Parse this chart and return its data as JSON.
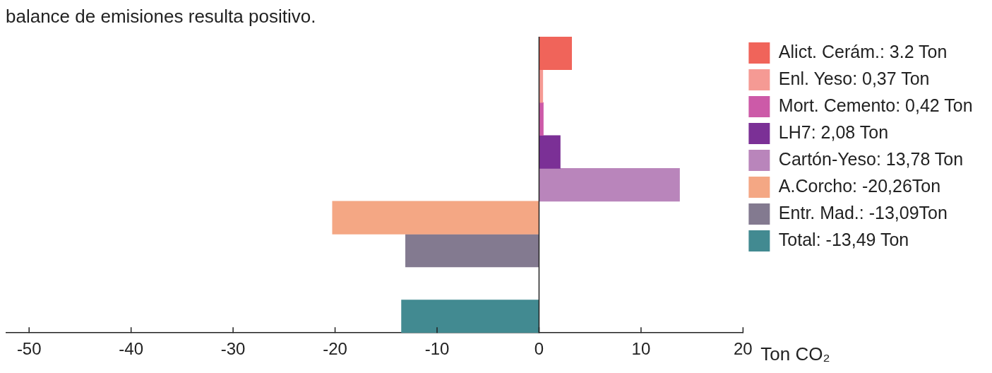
{
  "chart_data": {
    "type": "bar",
    "orientation": "horizontal",
    "annotations": [
      "balance de emisiones resulta positivo."
    ],
    "xlabel": "Ton CO₂",
    "categories": [
      null,
      null,
      null,
      null,
      null,
      null,
      null,
      null,
      null
    ],
    "series": [
      {
        "name": "Alict. Cerám.: 3.2 Ton",
        "color": "#f0645a",
        "values": [
          3.2,
          null,
          null,
          null,
          null,
          null,
          null,
          null,
          null
        ]
      },
      {
        "name": "Enl. Yeso: 0,37 Ton",
        "color": "#f59a94",
        "values": [
          null,
          0.37,
          null,
          null,
          null,
          null,
          null,
          null,
          null
        ]
      },
      {
        "name": "Mort. Cemento: 0,42 Ton",
        "color": "#cc5aa8",
        "values": [
          null,
          null,
          0.42,
          null,
          null,
          null,
          null,
          null,
          null
        ]
      },
      {
        "name": "LH7: 2,08 Ton",
        "color": "#7b3096",
        "values": [
          null,
          null,
          null,
          2.08,
          null,
          null,
          null,
          null,
          null
        ]
      },
      {
        "name": "Cartón-Yeso: 13,78 Ton",
        "color": "#b985bb",
        "values": [
          null,
          null,
          null,
          null,
          13.78,
          null,
          null,
          null,
          null
        ]
      },
      {
        "name": "A.Corcho: -20,26Ton",
        "color": "#f4a784",
        "values": [
          null,
          null,
          null,
          null,
          null,
          -20.26,
          null,
          null,
          null
        ]
      },
      {
        "name": "Entr. Mad.: -13,09Ton",
        "color": "#837a90",
        "values": [
          null,
          null,
          null,
          null,
          null,
          null,
          -13.09,
          null,
          null
        ]
      },
      {
        "name": "Total: -13,49 Ton",
        "color": "#428a91",
        "values": [
          null,
          null,
          null,
          null,
          null,
          null,
          null,
          null,
          -13.49
        ]
      }
    ],
    "xlim": [
      -52.3,
      20
    ],
    "xticks": [
      -50,
      -40,
      -30,
      -20,
      -10,
      0,
      10,
      20
    ],
    "ref_lines": [
      {
        "axis": "x",
        "value": 0,
        "color": "#222222"
      }
    ],
    "grid": false,
    "legend": "right"
  }
}
